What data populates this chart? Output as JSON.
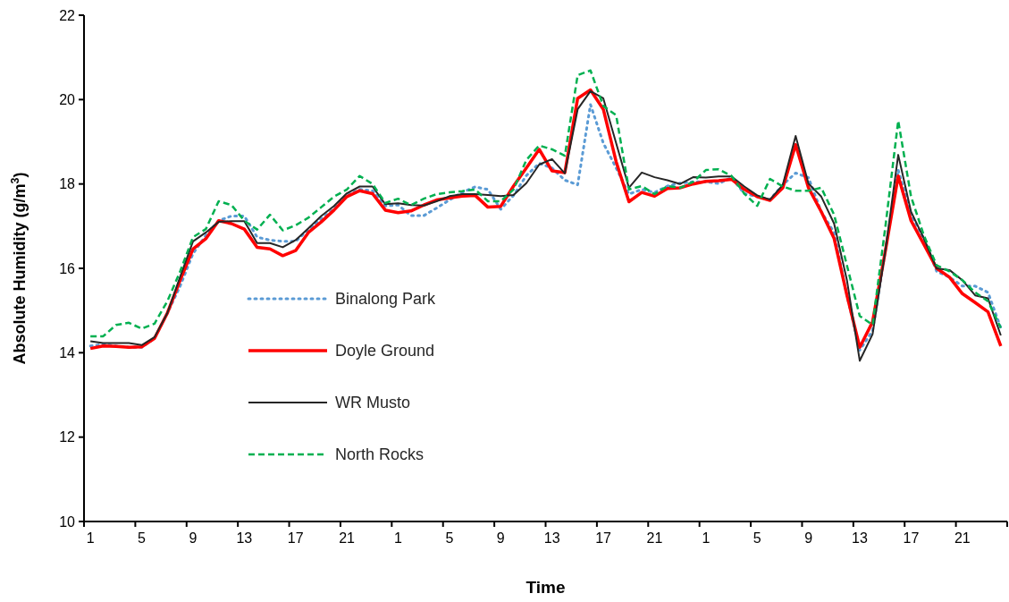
{
  "chart_data": {
    "type": "line",
    "xlabel": "Time",
    "ylabel": "Absolute Humidity (g/m$^{3}$)",
    "categories": [
      "1",
      null,
      null,
      null,
      "5",
      null,
      null,
      null,
      "9",
      null,
      null,
      null,
      "13",
      null,
      null,
      null,
      "17",
      null,
      null,
      null,
      "21",
      null,
      null,
      null,
      "1",
      null,
      null,
      null,
      "5",
      null,
      null,
      null,
      "9",
      null,
      null,
      null,
      "13",
      null,
      null,
      null,
      "17",
      null,
      null,
      null,
      "21",
      null,
      null,
      null,
      "1",
      null,
      null,
      null,
      "5",
      null,
      null,
      null,
      "9",
      null,
      null,
      null,
      "13",
      null,
      null,
      null,
      "17",
      null,
      null,
      null,
      "21",
      null,
      null,
      null
    ],
    "ylim": [
      10,
      22
    ],
    "yticks": [
      10,
      12,
      14,
      16,
      18,
      20,
      22
    ],
    "grid": false,
    "legend": "bottom left",
    "marker": "none",
    "series": [
      {
        "name": "Binalong Park",
        "color": "#5b9bd5",
        "line_style": "dotted",
        "values": [
          14.16,
          14.2,
          14.16,
          14.13,
          14.13,
          14.34,
          14.94,
          15.58,
          16.35,
          16.78,
          17.13,
          17.24,
          17.24,
          16.74,
          16.67,
          16.64,
          16.64,
          16.92,
          17.17,
          17.41,
          17.73,
          17.87,
          17.84,
          17.48,
          17.5,
          17.25,
          17.25,
          17.43,
          17.62,
          17.8,
          17.93,
          17.87,
          17.4,
          17.73,
          18.2,
          18.49,
          18.38,
          18.09,
          17.98,
          19.88,
          18.97,
          18.38,
          17.76,
          17.87,
          17.8,
          17.95,
          18.02,
          18.05,
          18.05,
          18.01,
          18.15,
          17.77,
          17.7,
          17.63,
          17.98,
          18.26,
          18.15,
          17.34,
          16.85,
          15.36,
          14.06,
          14.52,
          16.42,
          18.33,
          17.27,
          16.71,
          15.93,
          15.79,
          15.58,
          15.58,
          15.43,
          14.59
        ]
      },
      {
        "name": "Doyle Ground",
        "color": "#ff0000",
        "line_style": "solid",
        "values": [
          14.1,
          14.16,
          14.15,
          14.13,
          14.14,
          14.34,
          14.94,
          15.72,
          16.46,
          16.7,
          17.13,
          17.06,
          16.93,
          16.5,
          16.46,
          16.3,
          16.42,
          16.85,
          17.1,
          17.38,
          17.7,
          17.84,
          17.77,
          17.38,
          17.32,
          17.36,
          17.5,
          17.62,
          17.67,
          17.71,
          17.73,
          17.45,
          17.47,
          17.95,
          18.38,
          18.82,
          18.31,
          18.27,
          20.03,
          20.23,
          19.77,
          18.53,
          17.58,
          17.8,
          17.71,
          17.89,
          17.91,
          18.0,
          18.06,
          18.08,
          18.11,
          17.87,
          17.7,
          17.61,
          17.91,
          18.93,
          17.91,
          17.34,
          16.71,
          15.36,
          14.13,
          14.73,
          16.42,
          18.19,
          17.13,
          16.57,
          16.0,
          15.79,
          15.4,
          15.19,
          14.97,
          14.16
        ]
      },
      {
        "name": "WR Musto",
        "color": "#262626",
        "line_style": "solid",
        "values": [
          14.27,
          14.23,
          14.23,
          14.23,
          14.18,
          14.37,
          14.94,
          15.8,
          16.64,
          16.85,
          17.1,
          17.12,
          17.12,
          16.6,
          16.6,
          16.5,
          16.67,
          16.95,
          17.24,
          17.48,
          17.78,
          17.94,
          17.94,
          17.52,
          17.54,
          17.5,
          17.49,
          17.59,
          17.71,
          17.76,
          17.76,
          17.74,
          17.71,
          17.74,
          18.02,
          18.46,
          18.59,
          18.25,
          19.77,
          20.2,
          20.03,
          18.97,
          17.91,
          18.27,
          18.16,
          18.09,
          18.0,
          18.16,
          18.15,
          18.18,
          18.18,
          17.94,
          17.73,
          17.63,
          17.98,
          19.14,
          18.01,
          17.7,
          17.06,
          15.72,
          13.81,
          14.44,
          16.42,
          18.69,
          17.34,
          16.71,
          16.0,
          15.96,
          15.72,
          15.36,
          15.29,
          14.41
        ]
      },
      {
        "name": "North Rocks",
        "color": "#00b050",
        "line_style": "dashed",
        "values": [
          14.39,
          14.39,
          14.66,
          14.71,
          14.57,
          14.69,
          15.22,
          15.93,
          16.74,
          16.93,
          17.59,
          17.5,
          17.13,
          16.92,
          17.27,
          16.9,
          17.02,
          17.2,
          17.45,
          17.7,
          17.87,
          18.19,
          18.0,
          17.55,
          17.65,
          17.5,
          17.65,
          17.76,
          17.8,
          17.83,
          17.87,
          17.59,
          17.59,
          17.87,
          18.57,
          18.91,
          18.82,
          18.67,
          20.58,
          20.69,
          19.85,
          19.63,
          17.87,
          17.95,
          17.76,
          17.95,
          17.91,
          18.05,
          18.33,
          18.35,
          18.19,
          17.77,
          17.48,
          18.12,
          17.94,
          17.84,
          17.84,
          17.91,
          17.27,
          16.07,
          14.87,
          14.66,
          16.99,
          19.5,
          17.7,
          16.78,
          16.07,
          15.93,
          15.72,
          15.43,
          15.22,
          14.59
        ]
      }
    ]
  }
}
